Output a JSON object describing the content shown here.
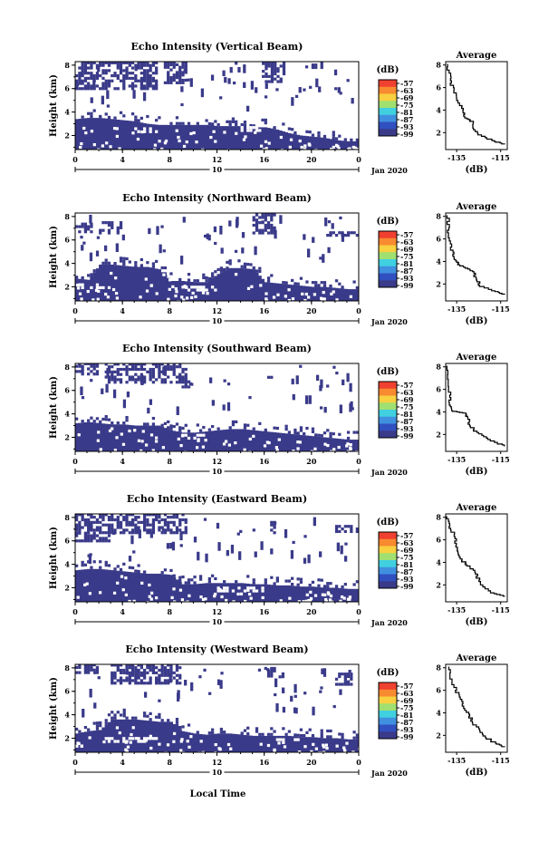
{
  "figure": {
    "date_label": "Jan 2020",
    "day_label": "10",
    "xlabel": "Local Time",
    "ylabel": "Height (km)",
    "colorbar_unit": "(dB)",
    "avg_title": "Average",
    "avg_xlabel": "(dB)"
  },
  "chart_data": [
    {
      "type": "heatmap",
      "title": "Echo Intensity (Vertical Beam)",
      "x_ticks": [
        "0",
        "4",
        "8",
        "12",
        "16",
        "20",
        "0"
      ],
      "xlim": [
        0,
        24
      ],
      "y_ticks": [
        "2",
        "4",
        "6",
        "8"
      ],
      "ylim": [
        0.8,
        8.3
      ],
      "colorbar": {
        "labels": [
          "-57",
          "-63",
          "-69",
          "-75",
          "-81",
          "-87",
          "-93",
          "-99"
        ],
        "colors": [
          "#f04030",
          "#f88a30",
          "#f8d040",
          "#a0e070",
          "#40d0e0",
          "#4090e0",
          "#3050c0",
          "#3a3a8a"
        ]
      },
      "echo": {
        "fill": "#3a3a8a",
        "lower_top": [
          3.4,
          3.5,
          3.5,
          3.4,
          3.3,
          3.2,
          3.0,
          2.9,
          2.9,
          2.9,
          2.9,
          2.9,
          2.8,
          2.8,
          2.8,
          2.7,
          2.7,
          2.5,
          2.2,
          2.0,
          1.9,
          1.8,
          1.6,
          1.5,
          1.5
        ],
        "upper": [
          [
            0,
            7,
            5.9,
            8.2
          ],
          [
            7.5,
            9.5,
            6.4,
            8.2
          ],
          [
            13.5,
            14,
            7.4,
            8.2
          ],
          [
            15.8,
            17.8,
            6.5,
            8.2
          ],
          [
            20,
            21,
            7.7,
            8.2
          ]
        ],
        "gaps": [
          [
            5,
            7,
            2.2,
            2.6
          ],
          [
            14,
            16,
            2.3,
            2.6
          ]
        ]
      },
      "average": {
        "x_ticks": [
          "-135",
          "-115"
        ],
        "xlim": [
          -140,
          -112
        ],
        "y_ticks": [
          "2",
          "4",
          "6",
          "8"
        ],
        "ylim": [
          0.5,
          8.3
        ],
        "profile": [
          [
            -113,
            1.0
          ],
          [
            -118,
            1.3
          ],
          [
            -124,
            1.8
          ],
          [
            -127,
            2.4
          ],
          [
            -128,
            3.0
          ],
          [
            -131,
            3.3
          ],
          [
            -132,
            3.9
          ],
          [
            -133,
            4.4
          ],
          [
            -135,
            5.3
          ],
          [
            -137,
            6.2
          ],
          [
            -138,
            7.0
          ],
          [
            -139,
            8.1
          ]
        ]
      }
    },
    {
      "type": "heatmap",
      "title": "Echo Intensity (Northward Beam)",
      "x_ticks": [
        "0",
        "4",
        "8",
        "12",
        "16",
        "20",
        "0"
      ],
      "xlim": [
        0,
        24
      ],
      "y_ticks": [
        "2",
        "4",
        "6",
        "8"
      ],
      "ylim": [
        0.8,
        8.3
      ],
      "colorbar": {
        "labels": [
          "-57",
          "-63",
          "-69",
          "-75",
          "-81",
          "-87",
          "-93",
          "-99"
        ],
        "colors": [
          "#f04030",
          "#f88a30",
          "#f8d040",
          "#a0e070",
          "#40d0e0",
          "#4090e0",
          "#3050c0",
          "#3a3a8a"
        ]
      },
      "echo": {
        "fill": "#3a3a8a",
        "lower_top": [
          2.7,
          2.6,
          3.9,
          3.9,
          3.8,
          3.7,
          3.7,
          3.5,
          2.5,
          2.5,
          2.4,
          2.4,
          3.1,
          3.6,
          3.6,
          3.5,
          2.4,
          2.3,
          2.2,
          2.1,
          2.0,
          2.0,
          1.9,
          1.8,
          1.8
        ],
        "upper": [
          [
            2,
            4,
            6.5,
            7.5
          ],
          [
            15,
            17,
            6.5,
            8.2
          ],
          [
            0,
            1.5,
            6.6,
            7.4
          ],
          [
            21,
            24,
            6.3,
            6.7
          ]
        ],
        "gaps": [
          [
            0,
            3,
            1.8,
            2.2
          ],
          [
            9,
            12,
            1.6,
            1.9
          ]
        ]
      },
      "average": {
        "x_ticks": [
          "-135",
          "-115"
        ],
        "xlim": [
          -140,
          -112
        ],
        "y_ticks": [
          "2",
          "4",
          "6",
          "8"
        ],
        "ylim": [
          0.5,
          8.3
        ],
        "profile": [
          [
            -113,
            1.1
          ],
          [
            -118,
            1.4
          ],
          [
            -124,
            1.9
          ],
          [
            -126,
            2.5
          ],
          [
            -127,
            3.1
          ],
          [
            -130,
            3.4
          ],
          [
            -134,
            3.8
          ],
          [
            -136,
            4.3
          ],
          [
            -137,
            5.0
          ],
          [
            -138,
            6.1
          ],
          [
            -139,
            7.0
          ],
          [
            -139,
            8.1
          ]
        ]
      }
    },
    {
      "type": "heatmap",
      "title": "Echo Intensity (Southward Beam)",
      "x_ticks": [
        "0",
        "4",
        "8",
        "12",
        "16",
        "20",
        "0"
      ],
      "xlim": [
        0,
        24
      ],
      "y_ticks": [
        "2",
        "4",
        "6",
        "8"
      ],
      "ylim": [
        0.8,
        8.3
      ],
      "colorbar": {
        "labels": [
          "-57",
          "-63",
          "-69",
          "-75",
          "-81",
          "-87",
          "-93",
          "-99"
        ],
        "colors": [
          "#f04030",
          "#f88a30",
          "#f8d040",
          "#a0e070",
          "#40d0e0",
          "#4090e0",
          "#3050c0",
          "#3a3a8a"
        ]
      },
      "echo": {
        "fill": "#3a3a8a",
        "lower_top": [
          3.2,
          3.3,
          3.2,
          3.1,
          3.1,
          3.0,
          3.0,
          3.0,
          2.6,
          2.4,
          2.4,
          2.5,
          2.6,
          2.7,
          2.7,
          2.6,
          2.5,
          2.4,
          2.3,
          2.2,
          2.1,
          2.0,
          1.9,
          1.8,
          1.8
        ],
        "upper": [
          [
            0,
            2,
            7.3,
            8.2
          ],
          [
            2.5,
            9.5,
            6.6,
            8.2
          ],
          [
            9,
            10,
            6.2,
            6.8
          ],
          [
            16,
            17,
            6.8,
            7.2
          ]
        ],
        "gaps": [
          [
            9,
            11,
            1.8,
            2.1
          ]
        ]
      },
      "average": {
        "x_ticks": [
          "-135",
          "-115"
        ],
        "xlim": [
          -140,
          -112
        ],
        "y_ticks": [
          "2",
          "4",
          "6",
          "8"
        ],
        "ylim": [
          0.5,
          8.3
        ],
        "profile": [
          [
            -113,
            1.0
          ],
          [
            -117,
            1.3
          ],
          [
            -122,
            1.8
          ],
          [
            -126,
            2.3
          ],
          [
            -129,
            2.9
          ],
          [
            -130,
            3.5
          ],
          [
            -131,
            3.9
          ],
          [
            -137,
            4.1
          ],
          [
            -138,
            4.6
          ],
          [
            -138,
            5.5
          ],
          [
            -139,
            6.5
          ],
          [
            -139,
            8.1
          ]
        ]
      }
    },
    {
      "type": "heatmap",
      "title": "Echo Intensity (Eastward Beam)",
      "x_ticks": [
        "0",
        "4",
        "8",
        "12",
        "16",
        "20",
        "0"
      ],
      "xlim": [
        0,
        24
      ],
      "y_ticks": [
        "2",
        "4",
        "6",
        "8"
      ],
      "ylim": [
        0.8,
        8.3
      ],
      "colorbar": {
        "labels": [
          "-57",
          "-63",
          "-69",
          "-75",
          "-81",
          "-87",
          "-93",
          "-99"
        ],
        "colors": [
          "#f04030",
          "#f88a30",
          "#f8d040",
          "#a0e070",
          "#40d0e0",
          "#4090e0",
          "#3050c0",
          "#3a3a8a"
        ]
      },
      "echo": {
        "fill": "#3a3a8a",
        "lower_top": [
          3.5,
          3.6,
          3.6,
          3.5,
          3.4,
          3.3,
          3.2,
          3.2,
          3.1,
          2.3,
          2.3,
          2.4,
          2.4,
          2.4,
          2.4,
          2.3,
          2.3,
          2.2,
          2.2,
          2.1,
          2.1,
          2.0,
          2.0,
          1.9,
          1.9
        ],
        "upper": [
          [
            0,
            9.5,
            6.6,
            8.2
          ],
          [
            0,
            3,
            5.9,
            6.6
          ],
          [
            16.5,
            17,
            6.6,
            7.5
          ],
          [
            22,
            24,
            6.7,
            7.2
          ]
        ],
        "gaps": [
          [
            12,
            16,
            1.6,
            2.0
          ]
        ]
      },
      "average": {
        "x_ticks": [
          "-135",
          "-115"
        ],
        "xlim": [
          -140,
          -112
        ],
        "y_ticks": [
          "2",
          "4",
          "6",
          "8"
        ],
        "ylim": [
          0.5,
          8.3
        ],
        "profile": [
          [
            -113,
            1.0
          ],
          [
            -118,
            1.3
          ],
          [
            -123,
            2.0
          ],
          [
            -125,
            2.6
          ],
          [
            -127,
            3.3
          ],
          [
            -130,
            3.8
          ],
          [
            -133,
            4.3
          ],
          [
            -134,
            5.0
          ],
          [
            -135,
            5.7
          ],
          [
            -136,
            6.5
          ],
          [
            -138,
            7.2
          ],
          [
            -139,
            8.1
          ]
        ]
      }
    },
    {
      "type": "heatmap",
      "title": "Echo Intensity (Westward Beam)",
      "x_ticks": [
        "0",
        "4",
        "8",
        "12",
        "16",
        "20",
        "0"
      ],
      "xlim": [
        0,
        24
      ],
      "y_ticks": [
        "2",
        "4",
        "6",
        "8"
      ],
      "ylim": [
        0.8,
        8.3
      ],
      "colorbar": {
        "labels": [
          "-57",
          "-63",
          "-69",
          "-75",
          "-81",
          "-87",
          "-93",
          "-99"
        ],
        "colors": [
          "#f04030",
          "#f88a30",
          "#f8d040",
          "#a0e070",
          "#40d0e0",
          "#4090e0",
          "#3050c0",
          "#3a3a8a"
        ]
      },
      "echo": {
        "fill": "#3a3a8a",
        "lower_top": [
          2.4,
          2.6,
          2.7,
          3.6,
          3.6,
          3.6,
          3.5,
          3.4,
          3.4,
          2.6,
          2.4,
          2.3,
          2.4,
          2.4,
          2.3,
          2.2,
          2.2,
          2.2,
          2.2,
          2.1,
          2.1,
          2.0,
          2.0,
          1.9,
          1.9
        ],
        "upper": [
          [
            3,
            9,
            6.6,
            8.2
          ],
          [
            16,
            17,
            7.2,
            8.0
          ],
          [
            0,
            2,
            7.5,
            8.2
          ],
          [
            22,
            23.5,
            6.5,
            7.5
          ]
        ],
        "gaps": [
          [
            2.5,
            7,
            1.6,
            2.0
          ],
          [
            17,
            19,
            1.5,
            1.9
          ]
        ]
      },
      "average": {
        "x_ticks": [
          "-135",
          "-115"
        ],
        "xlim": [
          -140,
          -112
        ],
        "y_ticks": [
          "2",
          "4",
          "6",
          "8"
        ],
        "ylim": [
          0.5,
          8.3
        ],
        "profile": [
          [
            -113,
            1.0
          ],
          [
            -117,
            1.3
          ],
          [
            -121,
            1.8
          ],
          [
            -124,
            2.4
          ],
          [
            -127,
            3.1
          ],
          [
            -129,
            3.7
          ],
          [
            -131,
            4.4
          ],
          [
            -133,
            5.2
          ],
          [
            -135,
            6.0
          ],
          [
            -137,
            7.0
          ],
          [
            -139,
            8.1
          ]
        ]
      }
    }
  ]
}
